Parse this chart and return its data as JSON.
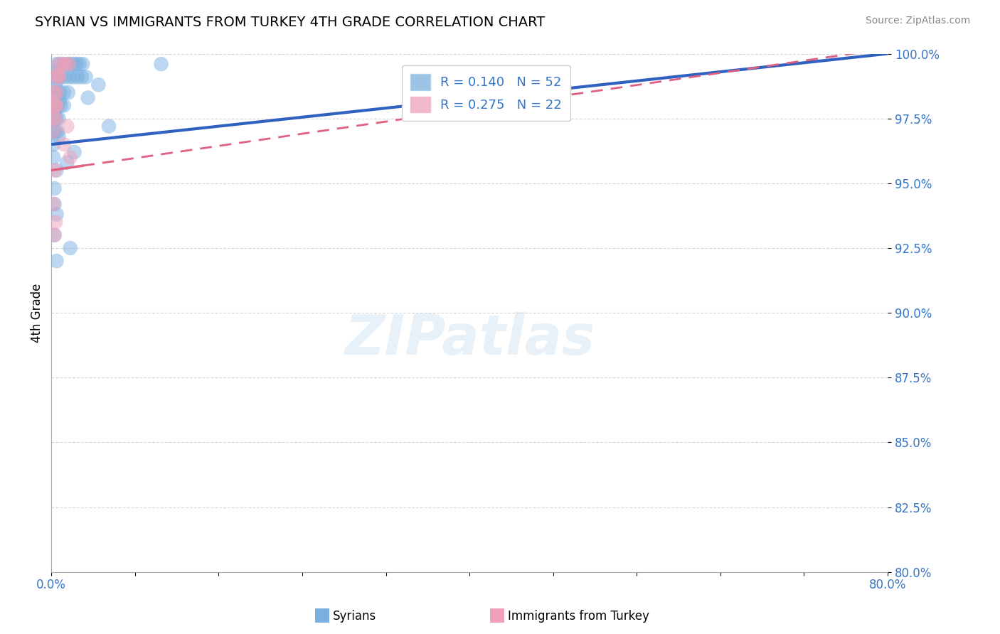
{
  "title": "SYRIAN VS IMMIGRANTS FROM TURKEY 4TH GRADE CORRELATION CHART",
  "source": "Source: ZipAtlas.com",
  "ylabel": "4th Grade",
  "xlim": [
    0.0,
    80.0
  ],
  "ylim": [
    80.0,
    100.0
  ],
  "yticks": [
    80.0,
    82.5,
    85.0,
    87.5,
    90.0,
    92.5,
    95.0,
    97.5,
    100.0
  ],
  "r_syrian": 0.14,
  "n_syrian": 52,
  "r_turkey": 0.275,
  "n_turkey": 22,
  "color_syrian": "#7ab0e0",
  "color_turkey": "#f0a0b8",
  "line_color_syrian": "#3060c0",
  "line_color_turkey": "#e06080",
  "legend_r_color": "#3575c8",
  "syrian_line_x0": 0.0,
  "syrian_line_y0": 96.5,
  "syrian_line_x1": 80.0,
  "syrian_line_y1": 100.0,
  "turkey_line_x0": 0.0,
  "turkey_line_y0": 95.5,
  "turkey_line_x1": 80.0,
  "turkey_line_y1": 100.2,
  "turkey_solid_xmax": 3.0,
  "syrian_points": [
    [
      0.5,
      99.6
    ],
    [
      0.8,
      99.6
    ],
    [
      1.2,
      99.6
    ],
    [
      1.5,
      99.6
    ],
    [
      1.8,
      99.6
    ],
    [
      2.1,
      99.6
    ],
    [
      2.4,
      99.6
    ],
    [
      2.7,
      99.6
    ],
    [
      3.0,
      99.6
    ],
    [
      0.5,
      99.1
    ],
    [
      0.9,
      99.1
    ],
    [
      1.3,
      99.1
    ],
    [
      1.7,
      99.1
    ],
    [
      2.1,
      99.1
    ],
    [
      2.5,
      99.1
    ],
    [
      2.9,
      99.1
    ],
    [
      3.3,
      99.1
    ],
    [
      0.4,
      98.5
    ],
    [
      0.8,
      98.5
    ],
    [
      1.2,
      98.5
    ],
    [
      1.6,
      98.5
    ],
    [
      0.3,
      98.0
    ],
    [
      0.6,
      98.0
    ],
    [
      0.9,
      98.0
    ],
    [
      1.2,
      98.0
    ],
    [
      0.3,
      97.5
    ],
    [
      0.5,
      97.5
    ],
    [
      0.7,
      97.5
    ],
    [
      0.2,
      97.0
    ],
    [
      0.4,
      97.0
    ],
    [
      0.6,
      97.0
    ],
    [
      0.2,
      96.5
    ],
    [
      1.5,
      95.8
    ],
    [
      0.3,
      94.8
    ],
    [
      0.5,
      93.8
    ],
    [
      0.3,
      93.0
    ],
    [
      0.5,
      92.0
    ],
    [
      1.8,
      92.5
    ],
    [
      10.5,
      99.6
    ],
    [
      4.5,
      98.8
    ],
    [
      3.5,
      98.3
    ],
    [
      0.2,
      99.3
    ],
    [
      0.7,
      96.8
    ],
    [
      0.5,
      95.5
    ],
    [
      2.2,
      96.2
    ],
    [
      5.5,
      97.2
    ],
    [
      0.8,
      98.2
    ],
    [
      0.3,
      97.7
    ],
    [
      0.4,
      98.7
    ],
    [
      0.6,
      99.0
    ],
    [
      0.2,
      96.0
    ],
    [
      0.3,
      94.2
    ]
  ],
  "turkey_points": [
    [
      0.7,
      99.6
    ],
    [
      1.1,
      99.6
    ],
    [
      1.4,
      99.6
    ],
    [
      1.7,
      99.6
    ],
    [
      0.5,
      99.1
    ],
    [
      0.8,
      99.1
    ],
    [
      0.3,
      98.5
    ],
    [
      0.5,
      98.5
    ],
    [
      0.3,
      98.0
    ],
    [
      0.5,
      98.0
    ],
    [
      0.2,
      97.5
    ],
    [
      0.4,
      97.5
    ],
    [
      0.2,
      97.0
    ],
    [
      1.2,
      96.5
    ],
    [
      0.3,
      95.5
    ],
    [
      0.2,
      94.2
    ],
    [
      0.4,
      93.5
    ],
    [
      0.3,
      93.0
    ],
    [
      1.5,
      97.2
    ],
    [
      0.6,
      99.2
    ],
    [
      0.4,
      98.0
    ],
    [
      1.8,
      96.0
    ]
  ]
}
